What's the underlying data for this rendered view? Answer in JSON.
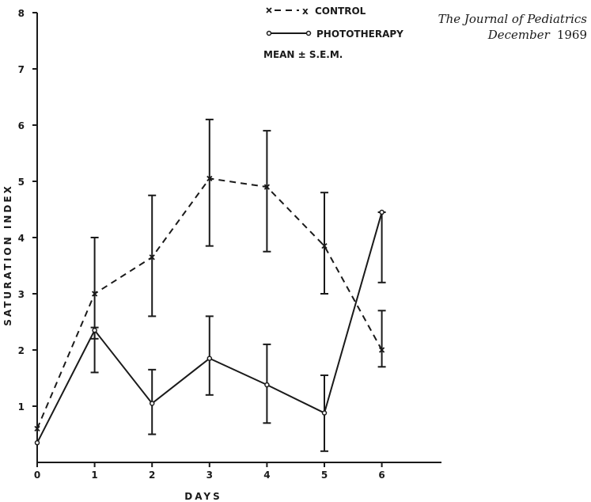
{
  "journal": {
    "name": "The Journal of Pediatrics",
    "month": "December",
    "year": "1969"
  },
  "legend": {
    "control_label": "CONTROL",
    "control_marker": "x",
    "phototherapy_label": "PHOTOTHERAPY",
    "note": "MEAN ± S.E.M."
  },
  "chart_data": {
    "type": "line",
    "title": "",
    "xlabel": "DAYS",
    "ylabel": "SATURATION INDEX",
    "xlim": [
      0,
      7
    ],
    "ylim": [
      0,
      8
    ],
    "x_ticks": [
      0,
      1,
      2,
      3,
      4,
      5,
      6
    ],
    "y_ticks": [
      1,
      2,
      3,
      4,
      5,
      6,
      7,
      8
    ],
    "grid": false,
    "legend_position": "top-right",
    "series": [
      {
        "name": "CONTROL",
        "style": "dashed",
        "marker": "x",
        "x": [
          0,
          1,
          2,
          3,
          4,
          5,
          6
        ],
        "y": [
          0.6,
          3.0,
          3.65,
          5.05,
          4.9,
          3.85,
          2.0
        ],
        "err_low": [
          null,
          2.2,
          2.6,
          3.85,
          3.75,
          3.0,
          1.7
        ],
        "err_high": [
          null,
          4.0,
          4.75,
          6.1,
          5.9,
          4.8,
          2.7
        ]
      },
      {
        "name": "PHOTOTHERAPY",
        "style": "solid",
        "marker": "o",
        "x": [
          0,
          1,
          2,
          3,
          4,
          5,
          6
        ],
        "y": [
          0.35,
          2.35,
          1.05,
          1.85,
          1.38,
          0.88,
          4.45
        ],
        "err_low": [
          null,
          1.6,
          0.5,
          1.2,
          0.7,
          0.2,
          3.2
        ],
        "err_high": [
          null,
          2.4,
          1.65,
          2.6,
          2.1,
          1.55,
          4.45
        ]
      }
    ]
  }
}
